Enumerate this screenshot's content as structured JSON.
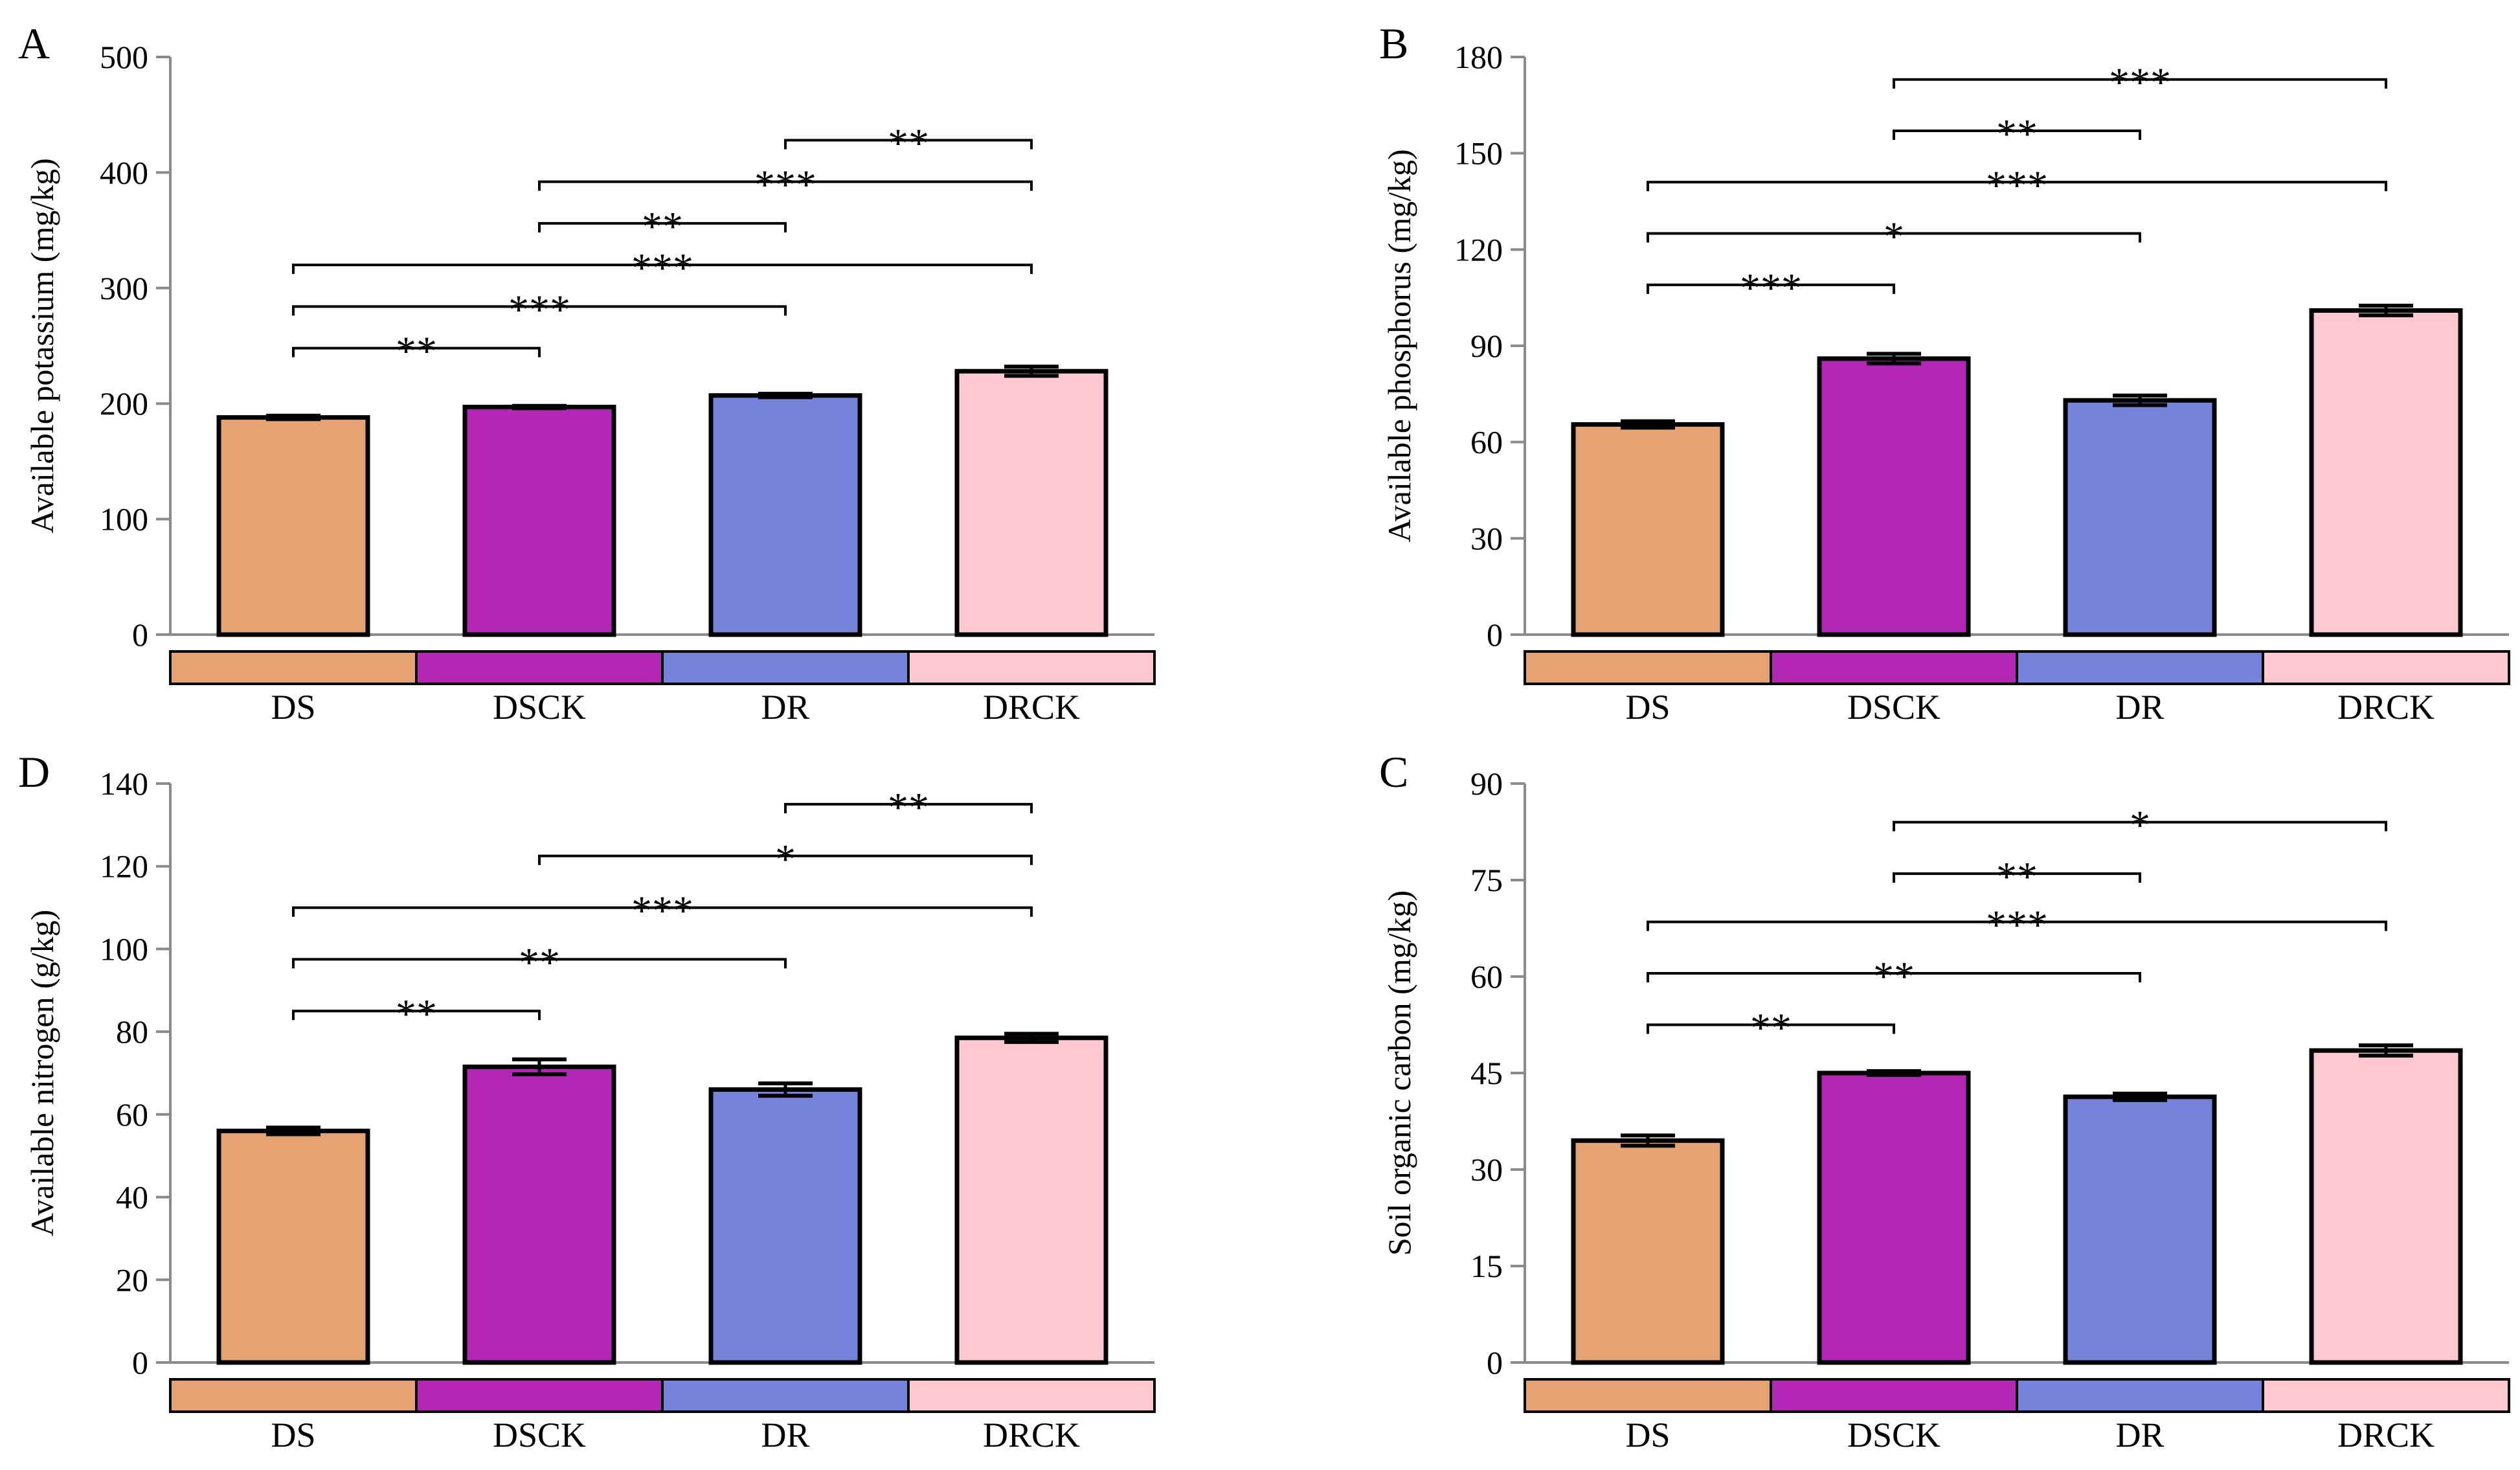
{
  "colors": {
    "DS": "#e5a273",
    "DSCK": "#b426b4",
    "DR": "#7583db",
    "DRCK": "#ffc8d0",
    "axis": "#8a8a8a",
    "ink": "#000000"
  },
  "chart_data": [
    {
      "panel": "A",
      "type": "bar",
      "ylabel": "Available potassium (mg/kg)",
      "categories": [
        "DS",
        "DSCK",
        "DR",
        "DRCK"
      ],
      "values": [
        188,
        197,
        207,
        228
      ],
      "errors": [
        1.5,
        1,
        1.5,
        4
      ],
      "ylim": [
        0,
        500
      ],
      "yticks": [
        0,
        100,
        200,
        300,
        400,
        500
      ],
      "significance": [
        {
          "from": 0,
          "to": 1,
          "y": 248,
          "label": "**"
        },
        {
          "from": 0,
          "to": 2,
          "y": 284,
          "label": "***"
        },
        {
          "from": 0,
          "to": 3,
          "y": 320,
          "label": "***"
        },
        {
          "from": 1,
          "to": 2,
          "y": 356,
          "label": "**"
        },
        {
          "from": 1,
          "to": 3,
          "y": 392,
          "label": "***"
        },
        {
          "from": 2,
          "to": 3,
          "y": 428,
          "label": "**"
        }
      ]
    },
    {
      "panel": "B",
      "type": "bar",
      "ylabel": "Available phosphorus (mg/kg)",
      "categories": [
        "DS",
        "DSCK",
        "DR",
        "DRCK"
      ],
      "values": [
        65.5,
        86,
        73,
        101
      ],
      "errors": [
        1,
        1.5,
        1.5,
        1.5
      ],
      "ylim": [
        0,
        180
      ],
      "yticks": [
        0,
        30,
        60,
        90,
        120,
        150,
        180
      ],
      "significance": [
        {
          "from": 0,
          "to": 1,
          "y": 109,
          "label": "***"
        },
        {
          "from": 0,
          "to": 2,
          "y": 125,
          "label": "*"
        },
        {
          "from": 0,
          "to": 3,
          "y": 141,
          "label": "***"
        },
        {
          "from": 1,
          "to": 2,
          "y": 157,
          "label": "**"
        },
        {
          "from": 1,
          "to": 3,
          "y": 173,
          "label": "***"
        }
      ]
    },
    {
      "panel": "D",
      "type": "bar",
      "ylabel": "Available nitrogen (g/kg)",
      "categories": [
        "DS",
        "DSCK",
        "DR",
        "DRCK"
      ],
      "values": [
        56,
        71.5,
        66,
        78.5
      ],
      "errors": [
        0.8,
        1.8,
        1.5,
        1
      ],
      "ylim": [
        0,
        140
      ],
      "yticks": [
        0,
        20,
        40,
        60,
        80,
        100,
        120,
        140
      ],
      "significance": [
        {
          "from": 0,
          "to": 1,
          "y": 85,
          "label": "**"
        },
        {
          "from": 0,
          "to": 2,
          "y": 97.5,
          "label": "**"
        },
        {
          "from": 0,
          "to": 3,
          "y": 110,
          "label": "***"
        },
        {
          "from": 1,
          "to": 3,
          "y": 122.5,
          "label": "*"
        },
        {
          "from": 2,
          "to": 3,
          "y": 135,
          "label": "**"
        }
      ]
    },
    {
      "panel": "C",
      "type": "bar",
      "ylabel": "Soil organic carbon (mg/kg)",
      "categories": [
        "DS",
        "DSCK",
        "DR",
        "DRCK"
      ],
      "values": [
        34.5,
        45,
        41.3,
        48.5
      ],
      "errors": [
        0.8,
        0.3,
        0.5,
        0.8
      ],
      "ylim": [
        0,
        90
      ],
      "yticks": [
        0,
        15,
        30,
        45,
        60,
        75,
        90
      ],
      "significance": [
        {
          "from": 0,
          "to": 1,
          "y": 52.5,
          "label": "**"
        },
        {
          "from": 0,
          "to": 2,
          "y": 60.5,
          "label": "**"
        },
        {
          "from": 0,
          "to": 3,
          "y": 68.5,
          "label": "***"
        },
        {
          "from": 1,
          "to": 2,
          "y": 76,
          "label": "**"
        },
        {
          "from": 1,
          "to": 3,
          "y": 84,
          "label": "*"
        }
      ]
    }
  ]
}
